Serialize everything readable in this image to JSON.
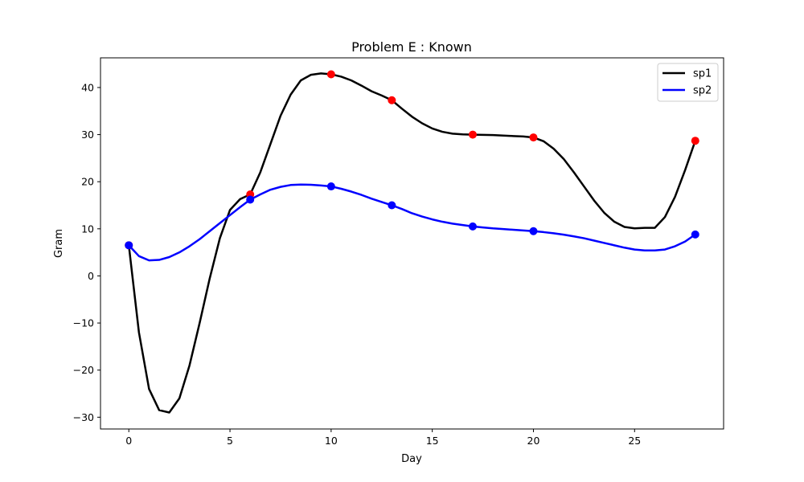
{
  "chart_data": {
    "type": "line",
    "title": "Problem E : Known",
    "xlabel": "Day",
    "ylabel": "Gram",
    "xlim": [
      -1.4,
      29.4
    ],
    "ylim": [
      -32.5,
      46.3
    ],
    "xticks": [
      0,
      5,
      10,
      15,
      20,
      25
    ],
    "yticks": [
      -30,
      -20,
      -10,
      0,
      10,
      20,
      30,
      40
    ],
    "xtick_labels": [
      "0",
      "5",
      "10",
      "15",
      "20",
      "25"
    ],
    "ytick_labels": [
      "−30",
      "−20",
      "−10",
      "0",
      "10",
      "20",
      "30",
      "40"
    ],
    "grid": false,
    "legend_position": "top-right",
    "series": [
      {
        "name": "sp1",
        "color": "#000000",
        "marker_color": "#ff0000",
        "points": {
          "x": [
            0,
            6,
            10,
            13,
            17,
            20,
            28
          ],
          "y": [
            6.5,
            17.3,
            42.8,
            37.3,
            30.0,
            29.4,
            28.7
          ]
        },
        "curve": {
          "x": [
            0,
            0.5,
            1,
            1.5,
            2,
            2.5,
            3,
            3.5,
            4,
            4.5,
            5,
            5.5,
            6,
            6.5,
            7,
            7.5,
            8,
            8.5,
            9,
            9.5,
            10,
            10.5,
            11,
            11.5,
            12,
            12.5,
            13,
            13.5,
            14,
            14.5,
            15,
            15.5,
            16,
            16.5,
            17,
            17.5,
            18,
            18.5,
            19,
            19.5,
            20,
            20.5,
            21,
            21.5,
            22,
            22.5,
            23,
            23.5,
            24,
            24.5,
            25,
            25.5,
            26,
            26.5,
            27,
            27.5,
            28
          ],
          "y": [
            6.5,
            -12,
            -24,
            -28.5,
            -29,
            -26,
            -19,
            -10,
            -0.5,
            8,
            14,
            16.3,
            17.3,
            22,
            28,
            34,
            38.5,
            41.5,
            42.7,
            43,
            42.8,
            42.3,
            41.5,
            40.4,
            39.2,
            38.3,
            37.3,
            35.5,
            33.8,
            32.4,
            31.3,
            30.6,
            30.2,
            30.05,
            30.0,
            29.95,
            29.9,
            29.8,
            29.7,
            29.6,
            29.4,
            28.6,
            27.0,
            24.8,
            22.0,
            19.0,
            16.0,
            13.4,
            11.5,
            10.4,
            10.1,
            10.2,
            10.2,
            12.5,
            16.8,
            22.5,
            28.7
          ]
        }
      },
      {
        "name": "sp2",
        "color": "#0000ff",
        "marker_color": "#0000ff",
        "points": {
          "x": [
            0,
            6,
            10,
            13,
            17,
            20,
            28
          ],
          "y": [
            6.5,
            16.2,
            19.0,
            15.0,
            10.5,
            9.5,
            8.8
          ]
        },
        "curve": {
          "x": [
            0,
            0.5,
            1,
            1.5,
            2,
            2.5,
            3,
            3.5,
            4,
            4.5,
            5,
            5.5,
            6,
            6.5,
            7,
            7.5,
            8,
            8.5,
            9,
            9.5,
            10,
            10.5,
            11,
            11.5,
            12,
            12.5,
            13,
            13.5,
            14,
            14.5,
            15,
            15.5,
            16,
            16.5,
            17,
            17.5,
            18,
            18.5,
            19,
            19.5,
            20,
            20.5,
            21,
            21.5,
            22,
            22.5,
            23,
            23.5,
            24,
            24.5,
            25,
            25.5,
            26,
            26.5,
            27,
            27.5,
            28
          ],
          "y": [
            6.5,
            4.2,
            3.3,
            3.4,
            4.0,
            5.0,
            6.3,
            7.8,
            9.5,
            11.2,
            12.9,
            14.6,
            16.2,
            17.3,
            18.3,
            18.9,
            19.3,
            19.4,
            19.35,
            19.2,
            19.0,
            18.5,
            17.9,
            17.2,
            16.4,
            15.7,
            15.0,
            14.2,
            13.3,
            12.6,
            12.0,
            11.5,
            11.1,
            10.8,
            10.5,
            10.3,
            10.1,
            9.95,
            9.8,
            9.65,
            9.5,
            9.3,
            9.05,
            8.75,
            8.4,
            8.0,
            7.5,
            7.0,
            6.5,
            6.0,
            5.6,
            5.4,
            5.4,
            5.6,
            6.3,
            7.3,
            8.8
          ]
        }
      }
    ]
  }
}
